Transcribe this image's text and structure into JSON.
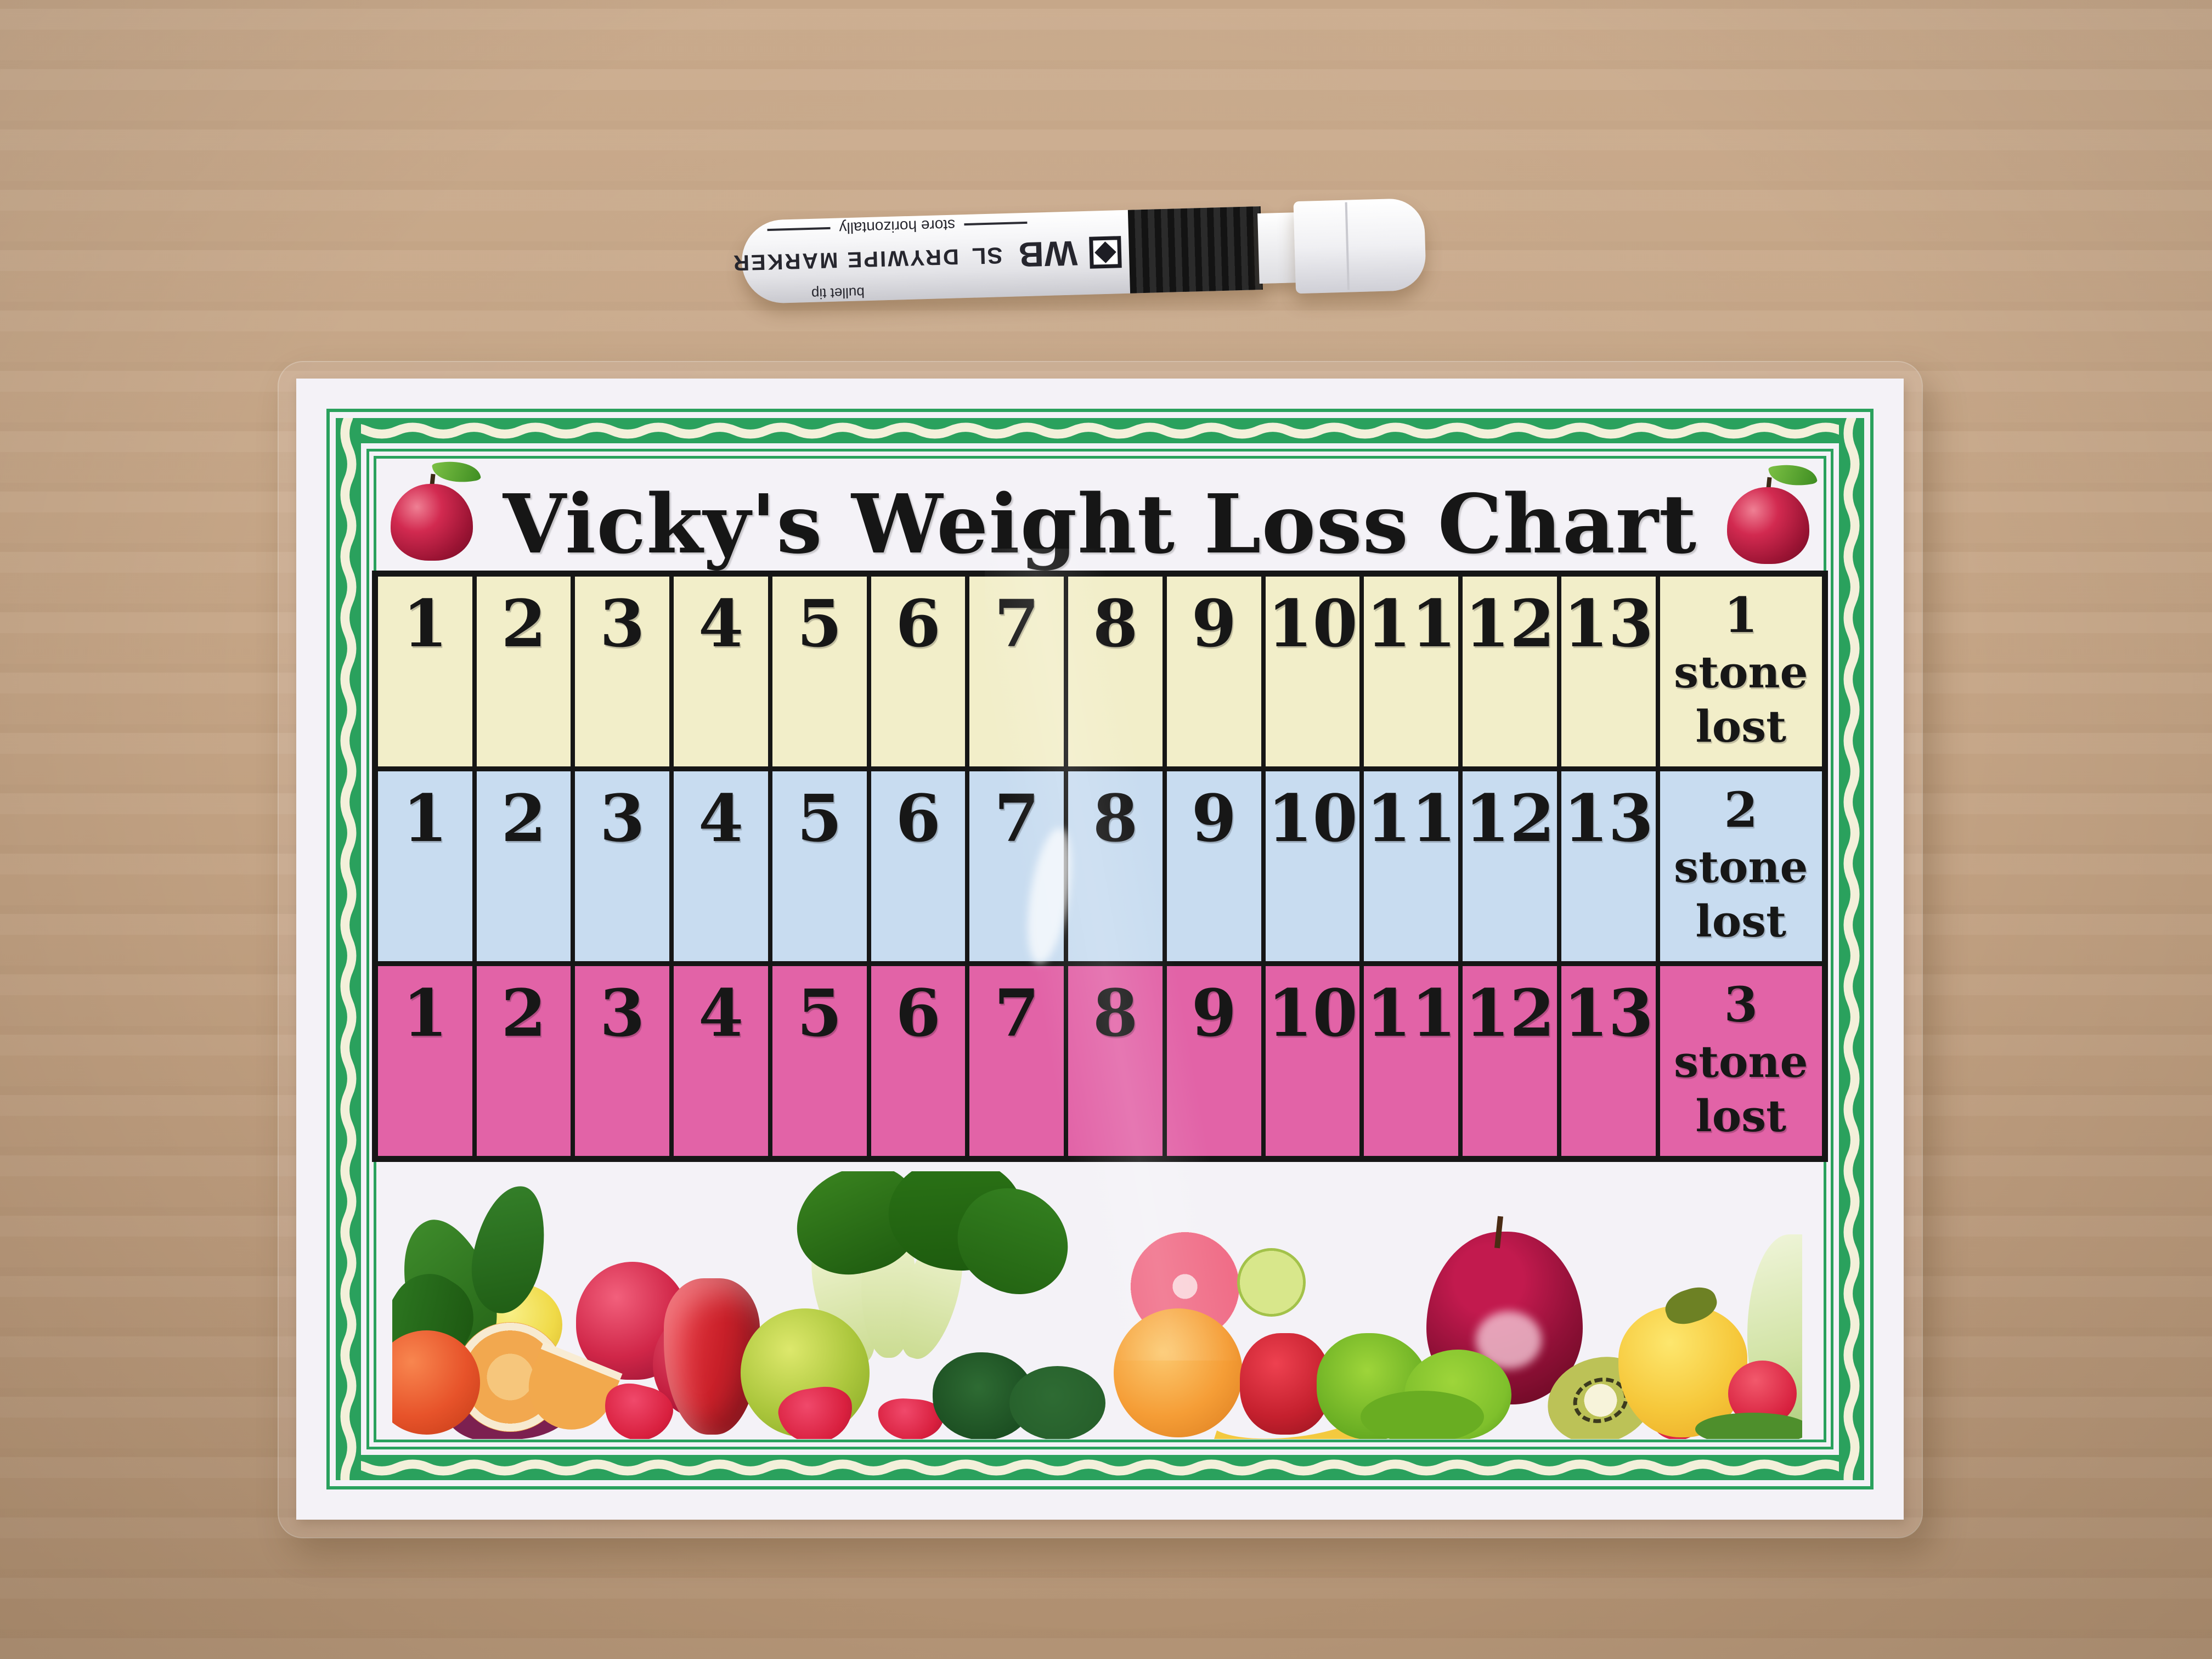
{
  "scene": {
    "description": "Photograph of a laminated weight-loss tracking chart lying on brown kraft paper with a white dry-wipe marker above it",
    "background_color": "#c6a687",
    "marker": {
      "brand": "WB",
      "model": "SL",
      "product_type": "DRYWIPE MARKER",
      "store_note": "store horizontally",
      "tip_note": "bullet tip",
      "logo_icon": "diamond-icon",
      "body_color": "#f4f4f6",
      "band_color": "#1d1d1f"
    },
    "card": {
      "title": "Vicky's Weight Loss Chart",
      "title_color": "#161616",
      "card_color": "#f4f2f7",
      "border_green": "#2aa15d",
      "ribbon_cream": "#f3f0da",
      "grid_black": "#161616",
      "apple_icon": "red-apple-icon",
      "cell_numbers": [
        "1",
        "2",
        "3",
        "4",
        "5",
        "6",
        "7",
        "8",
        "9",
        "10",
        "11",
        "12",
        "13"
      ],
      "rows": [
        {
          "name": "row-1-stone",
          "color": "#f2eec9",
          "goal_number": "1",
          "goal_word1": "stone",
          "goal_word2": "lost"
        },
        {
          "name": "row-2-stone",
          "color": "#c8dcf0",
          "goal_number": "2",
          "goal_word1": "stone",
          "goal_word2": "lost"
        },
        {
          "name": "row-3-stone",
          "color": "#e263a7",
          "goal_number": "3",
          "goal_word1": "stone",
          "goal_word2": "lost"
        }
      ],
      "footer_collage_items": [
        "basil leaves",
        "orange half",
        "orange wedge",
        "lemon",
        "red nectarines",
        "plum",
        "strawberries",
        "red pepper",
        "green apple",
        "bok choy",
        "tomato",
        "curly parsley",
        "pink grapefruit half",
        "lime",
        "orange",
        "banana",
        "frisee lettuce",
        "dark red apple",
        "kiwi slice",
        "yellow pepper",
        "radish",
        "cabbage wedge"
      ]
    }
  }
}
